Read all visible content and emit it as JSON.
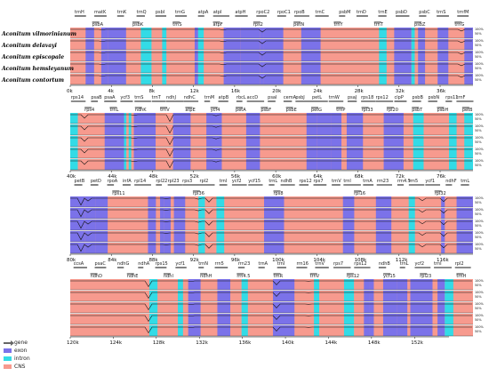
{
  "species": [
    "Aconitum vilmorinianum",
    "Aconitum delavayi",
    "Aconitum episcopale",
    "Aconitum hemsleyanum",
    "Aconitum contortum"
  ],
  "pct_labels": [
    "100%",
    "50%"
  ],
  "legend": [
    {
      "label": "gene",
      "kind": "arrow",
      "color": "#666666"
    },
    {
      "label": "exon",
      "kind": "box",
      "color": "#7b72e9"
    },
    {
      "label": "intron",
      "kind": "box",
      "color": "#33dbe6"
    },
    {
      "label": "CNS",
      "kind": "box",
      "color": "#f79a8e"
    }
  ],
  "colors": {
    "exon": "#7b72e9",
    "intron": "#33dbe6",
    "cns": "#f79a8e",
    "gene": "#666666"
  },
  "panels": [
    {
      "ticks": [
        "0k",
        "4k",
        "8k",
        "12k",
        "16k",
        "20k",
        "24k",
        "28k",
        "32k",
        "36k"
      ],
      "genes_top": [
        "trnH",
        "matK",
        "trnK",
        "trnQ",
        "psbI",
        "trnG",
        "atpA",
        "atpI",
        "atpH",
        "rpoC2",
        "rpoC1",
        "rpoB",
        "trnC",
        "psbM",
        "trnD",
        "trnE",
        "psbD",
        "psbC",
        "trnS",
        "trnfM"
      ],
      "genes_bottom": [
        "psbA",
        "psbK",
        "trnS",
        "atpF",
        "rps2",
        "petN",
        "trnY",
        "trnT",
        "psbZ",
        "trnG"
      ]
    },
    {
      "ticks": [
        "40k",
        "44k",
        "48k",
        "52k",
        "56k",
        "60k",
        "64k",
        "68k",
        "72k",
        "76k"
      ],
      "genes_top": [
        "rps14",
        "psaB",
        "psaA",
        "ycf3",
        "trnS",
        "trnT",
        "ndhJ",
        "ndhC",
        "trnM",
        "atpB",
        "rbcL",
        "accD",
        "psaI",
        "cemA",
        "psbJ",
        "petL",
        "trnW",
        "psaJ",
        "rps18",
        "rps12",
        "clpP",
        "psbB",
        "psbN",
        "rps11",
        "trnF"
      ],
      "genes_bottom": [
        "rps4",
        "trnL",
        "ndhK",
        "trnV",
        "atpE",
        "ycf4",
        "petA",
        "psbF",
        "psbE",
        "petG",
        "trnP",
        "rpl33",
        "rpl20",
        "psbT",
        "psbH",
        "petB"
      ]
    },
    {
      "ticks": [
        "80k",
        "84k",
        "88k",
        "92k",
        "96k",
        "100k",
        "104k",
        "108k",
        "112k",
        "116k"
      ],
      "genes_top": [
        "petB",
        "petD",
        "rpoA",
        "infA",
        "rpl14",
        "rpl22",
        "rpl23",
        "rps3",
        "rpl2",
        "trnI",
        "ycf2",
        "ycf15",
        "trnL",
        "ndhB",
        "rps12",
        "rps7",
        "trnV",
        "trnI",
        "trnA",
        "rrn23",
        "rrn4.5",
        "rrn5",
        "ycf1",
        "ndhF",
        "trnL"
      ],
      "genes_bottom": [
        "rps11",
        "rpl36",
        "rps8",
        "rpl16",
        "rpl32"
      ]
    },
    {
      "ticks": [
        "120k",
        "124k",
        "128k",
        "132k",
        "136k",
        "140k",
        "144k",
        "148k",
        "152k"
      ],
      "genes_top": [
        "ccsA",
        "psaC",
        "ndhG",
        "ndhA",
        "rps15",
        "ycf1",
        "trnN",
        "rrn5",
        "rrn23",
        "trnA",
        "trnI",
        "rrn16",
        "trnV",
        "rps7",
        "rps12",
        "ndhB",
        "trnL",
        "ycf2",
        "trnI",
        "rpl2"
      ],
      "genes_bottom": [
        "ndhD",
        "ndhE",
        "ndhI",
        "ndhH",
        "rrn4.5",
        "trnR",
        "trnV",
        "rps12",
        "ycf15",
        "rpl23",
        "trnH"
      ]
    }
  ]
}
